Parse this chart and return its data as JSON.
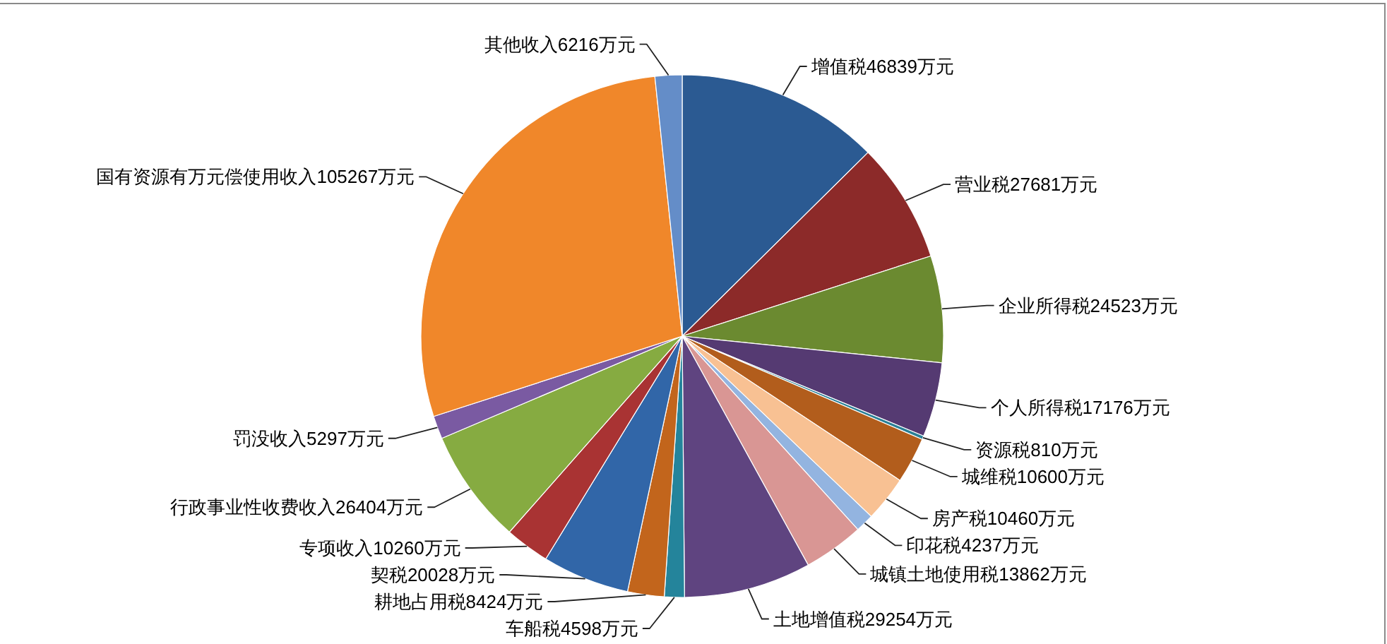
{
  "chart_data": {
    "type": "pie",
    "categories": [
      "增值税",
      "营业税",
      "企业所得税",
      "个人所得税",
      "资源税",
      "城维税",
      "房产税",
      "印花税",
      "城镇土地使用税",
      "土地增值税",
      "车船税",
      "耕地占用税",
      "契税",
      "专项收入",
      "行政事业性收费收入",
      "罚没收入",
      "国有资源有万元偿使用收入",
      "其他收入"
    ],
    "values": [
      46839,
      27681,
      24523,
      17176,
      810,
      10600,
      10460,
      4237,
      13862,
      29254,
      4598,
      8424,
      20028,
      10260,
      26404,
      5297,
      105267,
      6216
    ],
    "value_labels": [
      "46839万元",
      "27681万元",
      "24523万元",
      "17176万元",
      "810万元",
      "10600万元",
      "10460万元",
      "4237万元",
      "13862万元",
      "29254万元",
      "4598万元",
      "8424万元",
      "20028万元",
      "10260万元",
      "26404万元",
      "5297万元",
      "105267万元",
      "6216万元"
    ],
    "colors": [
      "#2b5a92",
      "#8c2a29",
      "#6b8a30",
      "#553a72",
      "#2a8096",
      "#b25d1c",
      "#f8c193",
      "#93b4e0",
      "#d99694",
      "#5f4480",
      "#24849b",
      "#c2651c",
      "#3166a8",
      "#a93333",
      "#86ab41",
      "#7a5aa2",
      "#f0872a",
      "#648dc8"
    ]
  }
}
